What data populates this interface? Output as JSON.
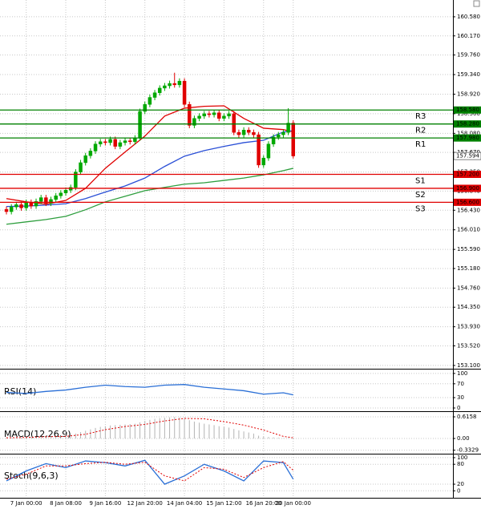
{
  "chart_data": [
    {
      "type": "candlestick",
      "categories": [
        null,
        null,
        null,
        null,
        "7 Jan 00:00",
        null,
        null,
        null,
        null,
        null,
        null,
        null,
        "8 Jan 08:00",
        null,
        null,
        null,
        null,
        null,
        null,
        null,
        "9 Jan 16:00",
        null,
        null,
        null,
        null,
        null,
        null,
        null,
        "12 Jan 20:00",
        null,
        null,
        null,
        null,
        null,
        null,
        null,
        "14 Jan 04:00",
        null,
        null,
        null,
        null,
        null,
        null,
        null,
        "15 Jan 12:00",
        null,
        null,
        null,
        null,
        null,
        null,
        null,
        "16 Jan 20:00",
        null,
        null,
        null,
        null,
        null,
        "20 Jan 00:00"
      ],
      "open": [
        156.45,
        156.4,
        156.5,
        156.55,
        156.48,
        156.6,
        156.52,
        156.62,
        156.7,
        156.58,
        156.66,
        156.74,
        156.8,
        156.86,
        156.92,
        157.25,
        157.45,
        157.6,
        157.7,
        157.85,
        157.9,
        157.88,
        157.95,
        157.8,
        157.88,
        157.92,
        157.9,
        157.98,
        158.55,
        158.7,
        158.85,
        158.95,
        159.05,
        159.1,
        159.15,
        159.12,
        159.2,
        158.7,
        158.25,
        158.4,
        158.45,
        158.5,
        158.48,
        158.52,
        158.4,
        158.45,
        158.5,
        158.1,
        158.05,
        158.15,
        158.1,
        158.05,
        157.4,
        157.55,
        157.85,
        158.0,
        158.05,
        158.1,
        158.3
      ],
      "high": [
        156.51,
        156.56,
        156.61,
        156.61,
        156.66,
        156.66,
        156.68,
        156.76,
        156.76,
        156.72,
        156.8,
        156.86,
        156.92,
        156.98,
        157.31,
        157.51,
        157.66,
        157.76,
        157.91,
        157.96,
        157.96,
        158.01,
        158.01,
        157.94,
        157.98,
        157.98,
        158.04,
        158.61,
        158.76,
        158.91,
        159.01,
        159.11,
        159.16,
        159.21,
        159.38,
        159.26,
        159.26,
        158.76,
        158.46,
        158.51,
        158.56,
        158.56,
        158.58,
        158.58,
        158.51,
        158.56,
        158.56,
        158.16,
        158.21,
        158.21,
        158.16,
        158.11,
        157.61,
        157.91,
        158.06,
        158.11,
        158.16,
        158.62,
        158.36
      ],
      "low": [
        156.34,
        156.34,
        156.44,
        156.42,
        156.42,
        156.46,
        156.46,
        156.56,
        156.52,
        156.52,
        156.6,
        156.68,
        156.74,
        156.8,
        156.86,
        157.19,
        157.39,
        157.54,
        157.64,
        157.79,
        157.82,
        157.82,
        157.74,
        157.74,
        157.82,
        157.84,
        157.84,
        157.92,
        158.49,
        158.64,
        158.79,
        158.89,
        158.99,
        159.04,
        159.06,
        159.06,
        158.64,
        158.19,
        158.19,
        158.34,
        158.39,
        158.42,
        158.42,
        158.34,
        158.34,
        158.39,
        158.04,
        157.99,
        157.99,
        158.04,
        157.99,
        157.34,
        157.34,
        157.49,
        157.79,
        157.94,
        157.99,
        158.04,
        157.54
      ],
      "close": [
        156.4,
        156.5,
        156.55,
        156.48,
        156.6,
        156.52,
        156.62,
        156.7,
        156.58,
        156.66,
        156.74,
        156.8,
        156.86,
        156.92,
        157.25,
        157.45,
        157.6,
        157.7,
        157.85,
        157.9,
        157.88,
        157.95,
        157.8,
        157.88,
        157.92,
        157.9,
        157.98,
        158.55,
        158.7,
        158.85,
        158.95,
        159.05,
        159.1,
        159.15,
        159.12,
        159.2,
        158.7,
        158.25,
        158.4,
        158.45,
        158.5,
        158.48,
        158.52,
        158.4,
        158.45,
        158.5,
        158.1,
        158.05,
        158.15,
        158.1,
        158.05,
        157.4,
        157.55,
        157.85,
        158.0,
        158.05,
        158.1,
        158.3,
        157.594
      ],
      "up_color": "#00a800",
      "down_color": "#e00000",
      "series": [
        {
          "color": "#e00000",
          "x": [
            0,
            4,
            8,
            12,
            16,
            20,
            24,
            28,
            32,
            36,
            40,
            44,
            48,
            52,
            56,
            58
          ],
          "values": [
            156.68,
            156.61,
            156.56,
            156.64,
            156.9,
            157.33,
            157.68,
            158.02,
            158.45,
            158.62,
            158.66,
            158.67,
            158.4,
            158.19,
            158.16,
            158.11
          ]
        },
        {
          "color": "#2a4fd6",
          "x": [
            0,
            4,
            8,
            12,
            16,
            20,
            24,
            28,
            32,
            36,
            40,
            44,
            48,
            52,
            56,
            58
          ],
          "values": [
            156.51,
            156.52,
            156.54,
            156.57,
            156.68,
            156.82,
            156.95,
            157.12,
            157.37,
            157.59,
            157.71,
            157.8,
            157.88,
            157.93,
            158.11,
            158.14
          ]
        },
        {
          "color": "#2e9e3e",
          "x": [
            0,
            4,
            8,
            12,
            16,
            20,
            24,
            28,
            32,
            36,
            40,
            44,
            48,
            52,
            56,
            58
          ],
          "values": [
            156.13,
            156.18,
            156.23,
            156.3,
            156.44,
            156.61,
            156.73,
            156.85,
            156.92,
            156.99,
            157.02,
            157.07,
            157.12,
            157.19,
            157.28,
            157.33
          ]
        }
      ],
      "levels": [
        {
          "name": "R3",
          "value": 158.58,
          "value_label": "158.580",
          "color": "#008000"
        },
        {
          "name": "R2",
          "value": 158.28,
          "value_label": "158.280",
          "color": "#008000"
        },
        {
          "name": "R1",
          "value": 157.98,
          "value_label": "157.980",
          "color": "#008000"
        },
        {
          "name": "S1",
          "value": 157.2,
          "value_label": "157.200",
          "color": "#e00000"
        },
        {
          "name": "S2",
          "value": 156.9,
          "value_label": "156.900",
          "color": "#e00000"
        },
        {
          "name": "S3",
          "value": 156.6,
          "value_label": "156.600",
          "color": "#e00000"
        }
      ],
      "last_price": 157.594,
      "xlim": [
        -1.3,
        90.3
      ],
      "ylim": [
        153.03,
        160.94
      ],
      "yticks": [
        {
          "value": 153.1,
          "label": "153.100"
        },
        {
          "value": 153.52,
          "label": "153.520"
        },
        {
          "value": 153.93,
          "label": "153.930"
        },
        {
          "value": 154.35,
          "label": "154.350"
        },
        {
          "value": 154.76,
          "label": "154.760"
        },
        {
          "value": 155.18,
          "label": "155.180"
        },
        {
          "value": 155.59,
          "label": "155.590"
        },
        {
          "value": 156.01,
          "label": "156.010"
        },
        {
          "value": 156.43,
          "label": "156.430"
        },
        {
          "value": 156.84,
          "label": "156.840"
        },
        {
          "value": 157.25,
          "label": "157.250"
        },
        {
          "value": 157.67,
          "label": "157.670"
        },
        {
          "value": 158.08,
          "label": "158.080"
        },
        {
          "value": 158.5,
          "label": "158.500"
        },
        {
          "value": 158.92,
          "label": "158.920"
        },
        {
          "value": 159.34,
          "label": "159.340"
        },
        {
          "value": 159.76,
          "label": "159.760"
        },
        {
          "value": 160.17,
          "label": "160.170"
        },
        {
          "value": 160.58,
          "label": "160.580"
        }
      ],
      "grid": true
    },
    {
      "type": "line",
      "title": "RSI(14)",
      "xlim": [
        -1.3,
        90.3
      ],
      "ylim": [
        -7,
        109
      ],
      "yticks": [
        0,
        30,
        70,
        100
      ],
      "grid": true,
      "series": [
        {
          "color": "#2a6fd6",
          "x": [
            0,
            4,
            8,
            12,
            16,
            20,
            24,
            28,
            32,
            36,
            40,
            44,
            48,
            52,
            56,
            58
          ],
          "values": [
            45,
            42,
            48,
            52,
            60,
            66,
            62,
            60,
            66,
            68,
            60,
            55,
            50,
            40,
            44,
            38
          ]
        }
      ]
    },
    {
      "type": "bar",
      "title": "MACD(12,26,9)",
      "xlim": [
        -1.3,
        90.3
      ],
      "ylim": [
        -0.41,
        0.753
      ],
      "yticks": [
        {
          "value": -0.3329,
          "label": "-0.3329"
        },
        {
          "value": 0,
          "label": "0.00"
        },
        0.6158
      ],
      "grid": true,
      "color": "#b4b4b4",
      "values": [
        0.02,
        0.02,
        0.03,
        0.03,
        0.04,
        0.04,
        0.05,
        0.05,
        0.05,
        0.06,
        0.06,
        0.07,
        0.08,
        0.1,
        0.14,
        0.18,
        0.22,
        0.26,
        0.3,
        0.33,
        0.35,
        0.37,
        0.38,
        0.39,
        0.4,
        0.41,
        0.42,
        0.46,
        0.5,
        0.53,
        0.56,
        0.58,
        0.59,
        0.6,
        0.61,
        0.6,
        0.57,
        0.52,
        0.48,
        0.45,
        0.42,
        0.4,
        0.38,
        0.35,
        0.33,
        0.31,
        0.27,
        0.23,
        0.2,
        0.17,
        0.14,
        0.08,
        0.05,
        0.04,
        0.03,
        0.02,
        0.01,
        0.01,
        -0.02
      ],
      "series": [
        {
          "color": "#e00000",
          "dash": true,
          "x": [
            0,
            4,
            8,
            12,
            16,
            20,
            24,
            28,
            32,
            36,
            40,
            44,
            48,
            52,
            56,
            58
          ],
          "values": [
            0.02,
            0.03,
            0.05,
            0.06,
            0.12,
            0.25,
            0.34,
            0.4,
            0.5,
            0.57,
            0.56,
            0.48,
            0.38,
            0.24,
            0.06,
            0.02
          ]
        }
      ]
    },
    {
      "type": "line",
      "title": "Stoch(9,6,3)",
      "xlim": [
        -1.3,
        90.3
      ],
      "ylim": [
        -21,
        109.5
      ],
      "yticks": [
        0,
        20,
        80,
        100
      ],
      "grid": true,
      "series": [
        {
          "color": "#2a6fd6",
          "x": [
            0,
            4,
            8,
            12,
            16,
            20,
            24,
            28,
            32,
            36,
            40,
            44,
            48,
            52,
            56,
            58
          ],
          "values": [
            30,
            60,
            82,
            70,
            90,
            85,
            75,
            92,
            20,
            45,
            80,
            60,
            30,
            90,
            85,
            35
          ]
        },
        {
          "color": "#e00000",
          "dash": true,
          "x": [
            0,
            4,
            8,
            12,
            16,
            20,
            24,
            28,
            32,
            36,
            40,
            44,
            48,
            52,
            56,
            58
          ],
          "values": [
            35,
            50,
            75,
            75,
            82,
            86,
            80,
            86,
            45,
            30,
            70,
            65,
            40,
            70,
            88,
            62
          ]
        }
      ]
    }
  ]
}
